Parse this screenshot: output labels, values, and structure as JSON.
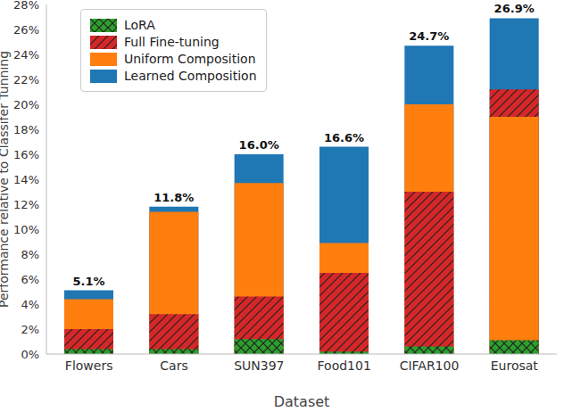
{
  "chart_data": {
    "type": "bar",
    "x_label": "Dataset",
    "y_label": "Performance relative to Classifer Tunning",
    "categories": [
      "Flowers",
      "Cars",
      "SUN397",
      "Food101",
      "CIFAR100",
      "Eurosat"
    ],
    "series": [
      {
        "name": "LoRA",
        "color": "#2ca02c",
        "values": [
          0.4,
          0.4,
          1.2,
          0.2,
          0.6,
          1.1
        ]
      },
      {
        "name": "Full Fine-tuning",
        "color": "#d62728",
        "values": [
          2.0,
          3.2,
          4.6,
          6.5,
          13.0,
          21.2
        ]
      },
      {
        "name": "Uniform Composition",
        "color": "#ff7f0e",
        "values": [
          4.4,
          11.4,
          13.7,
          8.9,
          20.0,
          19.0
        ]
      },
      {
        "name": "Learned Composition",
        "color": "#1f77b4",
        "values": [
          5.1,
          11.8,
          16.0,
          16.6,
          24.7,
          26.9
        ],
        "data_labels": true,
        "value_labels": [
          "5.1%",
          "11.8%",
          "16.0%",
          "16.6%",
          "24.7%",
          "26.9%"
        ]
      }
    ],
    "ylim": [
      0,
      28
    ],
    "yticks": [
      {
        "value": 0,
        "label": "0%"
      },
      {
        "value": 2,
        "label": "2%"
      },
      {
        "value": 4,
        "label": "4%"
      },
      {
        "value": 6,
        "label": "6%"
      },
      {
        "value": 8,
        "label": "8%"
      },
      {
        "value": 10,
        "label": "10%"
      },
      {
        "value": 12,
        "label": "12%"
      },
      {
        "value": 14,
        "label": "14%"
      },
      {
        "value": 16,
        "label": "16%"
      },
      {
        "value": 18,
        "label": "18%"
      },
      {
        "value": 20,
        "label": "20%"
      },
      {
        "value": 22,
        "label": "22%"
      },
      {
        "value": 24,
        "label": "24%"
      },
      {
        "value": 26,
        "label": "26%"
      },
      {
        "value": 28,
        "label": "28%"
      }
    ],
    "grid": false,
    "legend": "upper left",
    "stacked": false
  }
}
